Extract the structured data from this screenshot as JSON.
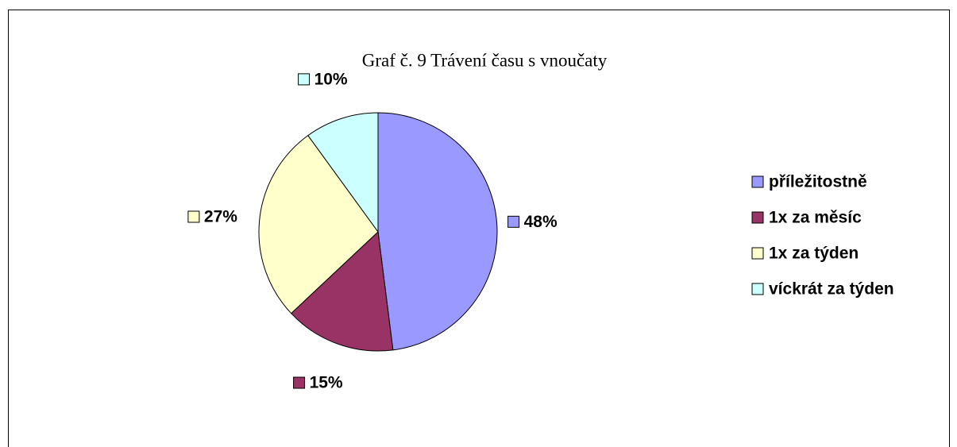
{
  "chart_data": {
    "type": "pie",
    "title": "Graf č. 9 Trávení času s vnoučaty",
    "categories": [
      "příležitostně",
      "1x za měsíc",
      "1x za týden",
      "víckrát za týden"
    ],
    "values": [
      48,
      15,
      27,
      10
    ],
    "value_labels": [
      "48%",
      "15%",
      "27%",
      "10%"
    ],
    "colors": [
      "#9999ff",
      "#993366",
      "#ffffcc",
      "#ccffff"
    ],
    "legend": "right"
  }
}
